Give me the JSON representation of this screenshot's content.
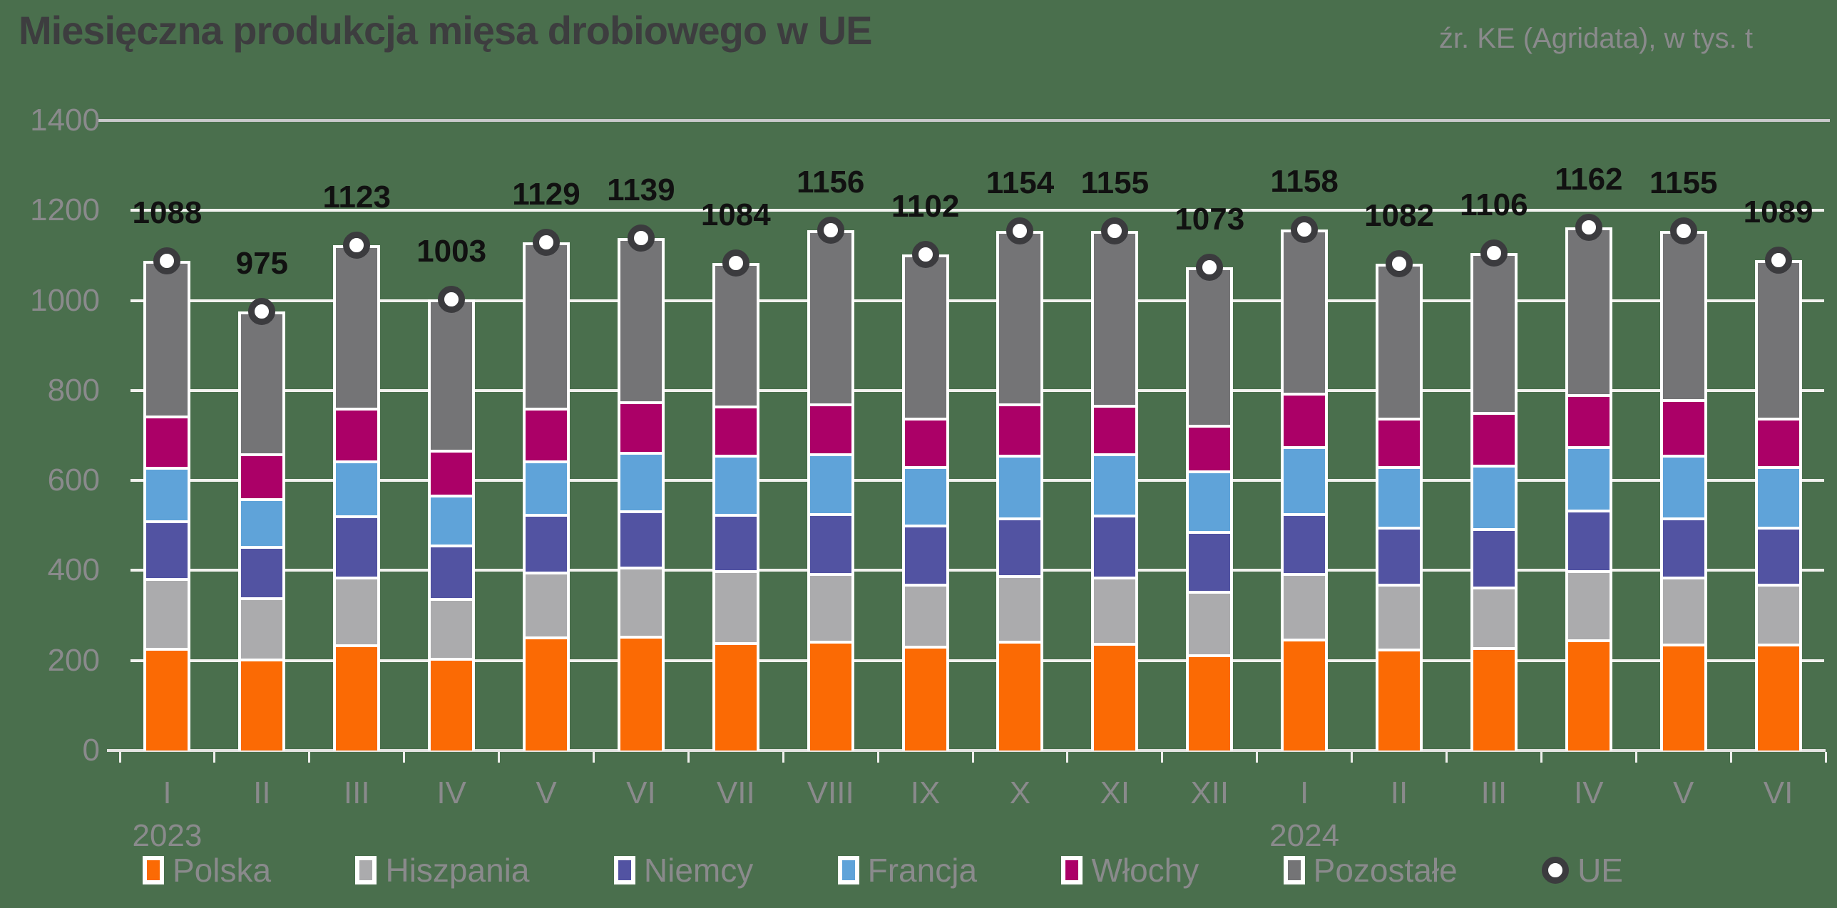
{
  "title": "Miesięczna produkcja mięsa drobiowego w UE",
  "source_note": "źr. KE (Agridata), w tys. t",
  "colors": {
    "background": "#4A6F4D",
    "polska": "#FB6A04",
    "hiszpania": "#ABABAD",
    "niemcy": "#5253A2",
    "francja": "#5FA3D9",
    "wlochy": "#AB0067",
    "pozostale": "#747476",
    "bar_border": "#FFFFFF",
    "grid_line": "#F2F2EF",
    "grid_top_line": "#C9C9CB",
    "baseline": "#E4E4E2",
    "tick": "#EFEFED",
    "marker_ring": "#3B3B3E",
    "marker_core": "#FFFFFF",
    "axis_text": "#8A8A8C",
    "legend_text": "#8A8A8C",
    "value_text": "#111111",
    "title_text": "#3D3D3F",
    "source_text": "#8A8A8C"
  },
  "legend": [
    {
      "label": "Polska",
      "color": "#FB6A04",
      "marker": "square"
    },
    {
      "label": "Hiszpania",
      "color": "#ABABAD",
      "marker": "square"
    },
    {
      "label": "Niemcy",
      "color": "#5253A2",
      "marker": "square"
    },
    {
      "label": "Francja",
      "color": "#5FA3D9",
      "marker": "square"
    },
    {
      "label": "Włochy",
      "color": "#AB0067",
      "marker": "square"
    },
    {
      "label": "Pozostałe",
      "color": "#747476",
      "marker": "square"
    },
    {
      "label": "UE",
      "marker": "circle"
    }
  ],
  "chart_data": {
    "type": "bar",
    "stacked": true,
    "unit": "tys. t",
    "grid": "horizontal",
    "legend_position": "bottom",
    "ylim": [
      0,
      1400
    ],
    "y_ticks": [
      0,
      200,
      400,
      600,
      800,
      1000,
      1200,
      1400
    ],
    "categories": [
      "I",
      "II",
      "III",
      "IV",
      "V",
      "VI",
      "VII",
      "VIII",
      "IX",
      "X",
      "XI",
      "XII",
      "I",
      "II",
      "III",
      "IV",
      "V",
      "VI"
    ],
    "years": [
      {
        "index": 0,
        "label": "2023"
      },
      {
        "index": 12,
        "label": "2024"
      }
    ],
    "series": [
      {
        "name": "Polska",
        "color": "#FB6A04",
        "values": [
          228,
          205,
          236,
          206,
          253,
          255,
          241,
          244,
          232,
          244,
          239,
          214,
          249,
          227,
          230,
          247,
          238,
          238
        ]
      },
      {
        "name": "Hiszpania",
        "color": "#ABABAD",
        "values": [
          155,
          135,
          150,
          133,
          144,
          153,
          160,
          150,
          138,
          145,
          147,
          140,
          146,
          143,
          134,
          154,
          148,
          132
        ]
      },
      {
        "name": "Niemcy",
        "color": "#5253A2",
        "values": [
          129,
          114,
          137,
          119,
          129,
          126,
          125,
          133,
          132,
          129,
          138,
          133,
          133,
          128,
          130,
          134,
          132,
          128
        ]
      },
      {
        "name": "Francja",
        "color": "#5FA3D9",
        "values": [
          118,
          107,
          121,
          111,
          119,
          129,
          131,
          133,
          130,
          140,
          136,
          135,
          148,
          134,
          141,
          142,
          140,
          134
        ]
      },
      {
        "name": "Włochy",
        "color": "#AB0067",
        "values": [
          115,
          100,
          117,
          100,
          117,
          113,
          110,
          111,
          108,
          113,
          108,
          101,
          119,
          108,
          118,
          115,
          122,
          108
        ]
      },
      {
        "name": "Pozostałe",
        "color": "#747476",
        "values": [
          343,
          314,
          362,
          334,
          367,
          363,
          317,
          385,
          362,
          383,
          387,
          350,
          363,
          342,
          353,
          370,
          375,
          349
        ]
      }
    ],
    "markers": {
      "name": "UE",
      "values": [
        1088,
        975,
        1123,
        1003,
        1129,
        1139,
        1084,
        1156,
        1102,
        1154,
        1155,
        1073,
        1158,
        1082,
        1106,
        1162,
        1155,
        1089
      ]
    }
  }
}
